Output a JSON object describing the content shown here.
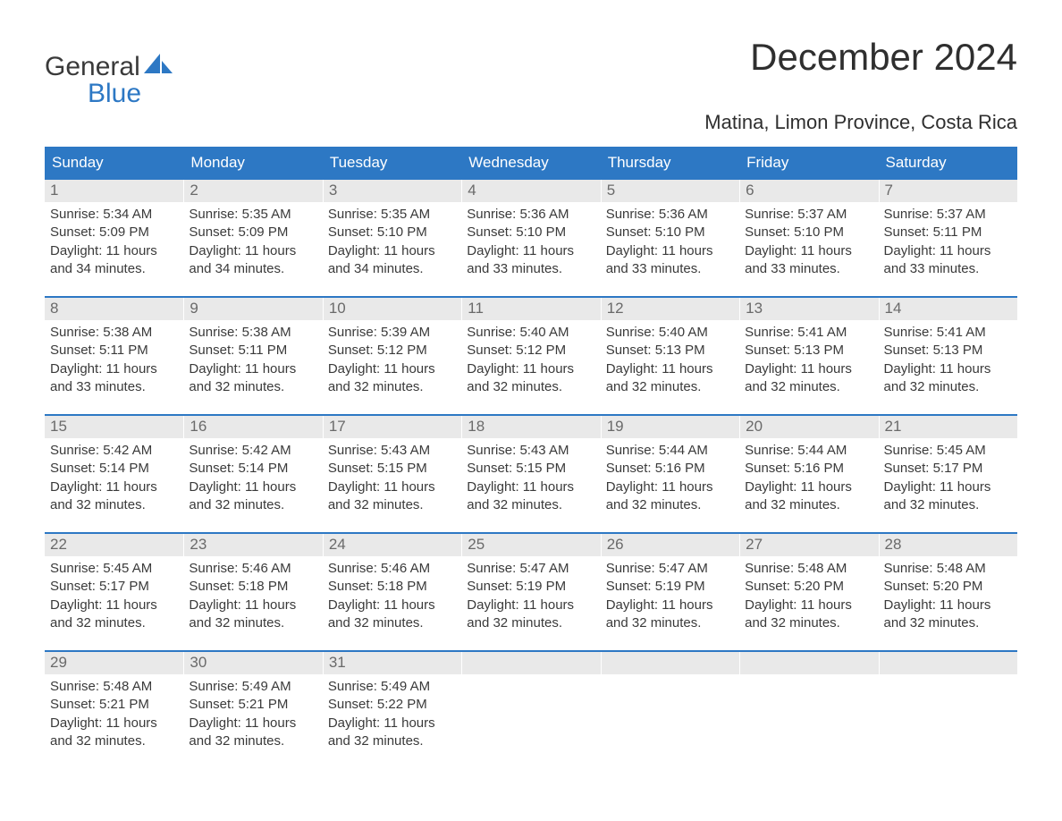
{
  "brand": {
    "word1": "General",
    "word2": "Blue",
    "blue_color": "#2d78c4",
    "gray_color": "#3a3a3a"
  },
  "title": "December 2024",
  "location": "Matina, Limon Province, Costa Rica",
  "colors": {
    "header_bg": "#2d78c4",
    "header_text": "#ffffff",
    "daynum_bg": "#e9e9e9",
    "daynum_text": "#6a6a6a",
    "body_text": "#3a3a3a",
    "page_bg": "#ffffff",
    "row_border": "#2d78c4"
  },
  "weekdays": [
    "Sunday",
    "Monday",
    "Tuesday",
    "Wednesday",
    "Thursday",
    "Friday",
    "Saturday"
  ],
  "labels": {
    "sunrise": "Sunrise:",
    "sunset": "Sunset:",
    "daylight": "Daylight:"
  },
  "weeks": [
    [
      {
        "day": "1",
        "sunrise": "5:34 AM",
        "sunset": "5:09 PM",
        "daylight": "11 hours and 34 minutes."
      },
      {
        "day": "2",
        "sunrise": "5:35 AM",
        "sunset": "5:09 PM",
        "daylight": "11 hours and 34 minutes."
      },
      {
        "day": "3",
        "sunrise": "5:35 AM",
        "sunset": "5:10 PM",
        "daylight": "11 hours and 34 minutes."
      },
      {
        "day": "4",
        "sunrise": "5:36 AM",
        "sunset": "5:10 PM",
        "daylight": "11 hours and 33 minutes."
      },
      {
        "day": "5",
        "sunrise": "5:36 AM",
        "sunset": "5:10 PM",
        "daylight": "11 hours and 33 minutes."
      },
      {
        "day": "6",
        "sunrise": "5:37 AM",
        "sunset": "5:10 PM",
        "daylight": "11 hours and 33 minutes."
      },
      {
        "day": "7",
        "sunrise": "5:37 AM",
        "sunset": "5:11 PM",
        "daylight": "11 hours and 33 minutes."
      }
    ],
    [
      {
        "day": "8",
        "sunrise": "5:38 AM",
        "sunset": "5:11 PM",
        "daylight": "11 hours and 33 minutes."
      },
      {
        "day": "9",
        "sunrise": "5:38 AM",
        "sunset": "5:11 PM",
        "daylight": "11 hours and 32 minutes."
      },
      {
        "day": "10",
        "sunrise": "5:39 AM",
        "sunset": "5:12 PM",
        "daylight": "11 hours and 32 minutes."
      },
      {
        "day": "11",
        "sunrise": "5:40 AM",
        "sunset": "5:12 PM",
        "daylight": "11 hours and 32 minutes."
      },
      {
        "day": "12",
        "sunrise": "5:40 AM",
        "sunset": "5:13 PM",
        "daylight": "11 hours and 32 minutes."
      },
      {
        "day": "13",
        "sunrise": "5:41 AM",
        "sunset": "5:13 PM",
        "daylight": "11 hours and 32 minutes."
      },
      {
        "day": "14",
        "sunrise": "5:41 AM",
        "sunset": "5:13 PM",
        "daylight": "11 hours and 32 minutes."
      }
    ],
    [
      {
        "day": "15",
        "sunrise": "5:42 AM",
        "sunset": "5:14 PM",
        "daylight": "11 hours and 32 minutes."
      },
      {
        "day": "16",
        "sunrise": "5:42 AM",
        "sunset": "5:14 PM",
        "daylight": "11 hours and 32 minutes."
      },
      {
        "day": "17",
        "sunrise": "5:43 AM",
        "sunset": "5:15 PM",
        "daylight": "11 hours and 32 minutes."
      },
      {
        "day": "18",
        "sunrise": "5:43 AM",
        "sunset": "5:15 PM",
        "daylight": "11 hours and 32 minutes."
      },
      {
        "day": "19",
        "sunrise": "5:44 AM",
        "sunset": "5:16 PM",
        "daylight": "11 hours and 32 minutes."
      },
      {
        "day": "20",
        "sunrise": "5:44 AM",
        "sunset": "5:16 PM",
        "daylight": "11 hours and 32 minutes."
      },
      {
        "day": "21",
        "sunrise": "5:45 AM",
        "sunset": "5:17 PM",
        "daylight": "11 hours and 32 minutes."
      }
    ],
    [
      {
        "day": "22",
        "sunrise": "5:45 AM",
        "sunset": "5:17 PM",
        "daylight": "11 hours and 32 minutes."
      },
      {
        "day": "23",
        "sunrise": "5:46 AM",
        "sunset": "5:18 PM",
        "daylight": "11 hours and 32 minutes."
      },
      {
        "day": "24",
        "sunrise": "5:46 AM",
        "sunset": "5:18 PM",
        "daylight": "11 hours and 32 minutes."
      },
      {
        "day": "25",
        "sunrise": "5:47 AM",
        "sunset": "5:19 PM",
        "daylight": "11 hours and 32 minutes."
      },
      {
        "day": "26",
        "sunrise": "5:47 AM",
        "sunset": "5:19 PM",
        "daylight": "11 hours and 32 minutes."
      },
      {
        "day": "27",
        "sunrise": "5:48 AM",
        "sunset": "5:20 PM",
        "daylight": "11 hours and 32 minutes."
      },
      {
        "day": "28",
        "sunrise": "5:48 AM",
        "sunset": "5:20 PM",
        "daylight": "11 hours and 32 minutes."
      }
    ],
    [
      {
        "day": "29",
        "sunrise": "5:48 AM",
        "sunset": "5:21 PM",
        "daylight": "11 hours and 32 minutes."
      },
      {
        "day": "30",
        "sunrise": "5:49 AM",
        "sunset": "5:21 PM",
        "daylight": "11 hours and 32 minutes."
      },
      {
        "day": "31",
        "sunrise": "5:49 AM",
        "sunset": "5:22 PM",
        "daylight": "11 hours and 32 minutes."
      },
      {
        "empty": true
      },
      {
        "empty": true
      },
      {
        "empty": true
      },
      {
        "empty": true
      }
    ]
  ]
}
